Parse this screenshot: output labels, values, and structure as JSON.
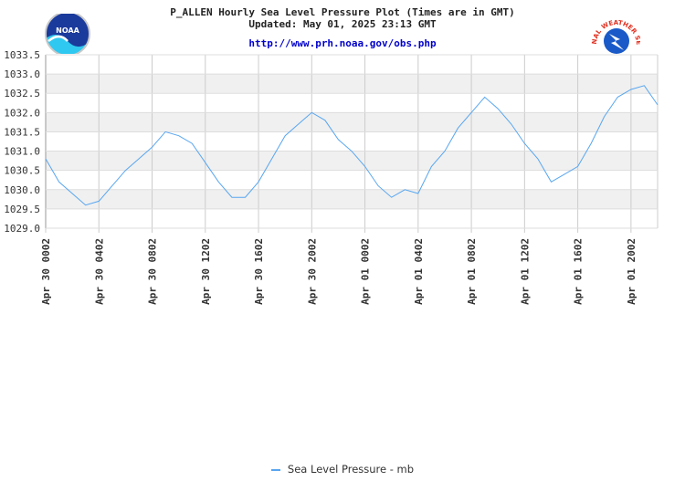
{
  "header": {
    "title": "P_ALLEN Hourly Sea Level Pressure Plot (Times are in GMT)",
    "updated": "Updated: May 01, 2025 23:13 GMT",
    "url": "http://www.prh.noaa.gov/obs.php"
  },
  "logos": {
    "noaa_text": "NOAA",
    "nws_text": "NATIONAL WEATHER SERVICE"
  },
  "legend": {
    "label": "Sea Level Pressure - mb"
  },
  "colors": {
    "line": "#58a6f0",
    "band": "#f0f0f0",
    "grid": "#cccccc",
    "url": "#0000cc"
  },
  "chart_data": {
    "type": "line",
    "title": "P_ALLEN Hourly Sea Level Pressure Plot (Times are in GMT)",
    "ylim": [
      1029.0,
      1033.5
    ],
    "y_ticks": [
      "1029.0",
      "1029.5",
      "1030.0",
      "1030.5",
      "1031.0",
      "1031.5",
      "1032.0",
      "1032.5",
      "1033.0",
      "1033.5"
    ],
    "x_range_hours": [
      0,
      46
    ],
    "x_ticks": [
      {
        "hour": 0,
        "label": "Apr 30 0002"
      },
      {
        "hour": 4,
        "label": "Apr 30 0402"
      },
      {
        "hour": 8,
        "label": "Apr 30 0802"
      },
      {
        "hour": 12,
        "label": "Apr 30 1202"
      },
      {
        "hour": 16,
        "label": "Apr 30 1602"
      },
      {
        "hour": 20,
        "label": "Apr 30 2002"
      },
      {
        "hour": 24,
        "label": "Apr 01 0002"
      },
      {
        "hour": 28,
        "label": "Apr 01 0402"
      },
      {
        "hour": 32,
        "label": "Apr 01 0802"
      },
      {
        "hour": 36,
        "label": "Apr 01 1202"
      },
      {
        "hour": 40,
        "label": "Apr 01 1602"
      },
      {
        "hour": 44,
        "label": "Apr 01 2002"
      }
    ],
    "series": [
      {
        "name": "Sea Level Pressure - mb",
        "x": [
          0,
          1,
          2,
          3,
          4,
          5,
          6,
          7,
          8,
          9,
          10,
          11,
          12,
          13,
          14,
          15,
          16,
          17,
          18,
          19,
          20,
          21,
          22,
          23,
          24,
          25,
          26,
          27,
          28,
          29,
          30,
          31,
          32,
          33,
          34,
          35,
          36,
          37,
          38,
          39,
          40,
          41,
          42,
          43,
          44,
          45,
          46
        ],
        "values": [
          1030.8,
          1030.2,
          1029.9,
          1029.6,
          1029.7,
          1030.1,
          1030.5,
          1030.8,
          1031.1,
          1031.5,
          1031.4,
          1031.2,
          1030.7,
          1030.2,
          1029.8,
          1029.8,
          1030.2,
          1030.8,
          1031.4,
          1031.7,
          1032.0,
          1031.8,
          1031.3,
          1031.0,
          1030.6,
          1030.1,
          1029.8,
          1030.0,
          1029.9,
          1030.6,
          1031.0,
          1031.6,
          1032.0,
          1032.4,
          1032.1,
          1031.7,
          1031.2,
          1030.8,
          1030.2,
          1030.4,
          1030.6,
          1031.2,
          1031.9,
          1032.4,
          1032.6,
          1032.7,
          1032.2
        ]
      }
    ],
    "grid": true,
    "legend_position": "bottom-center"
  }
}
